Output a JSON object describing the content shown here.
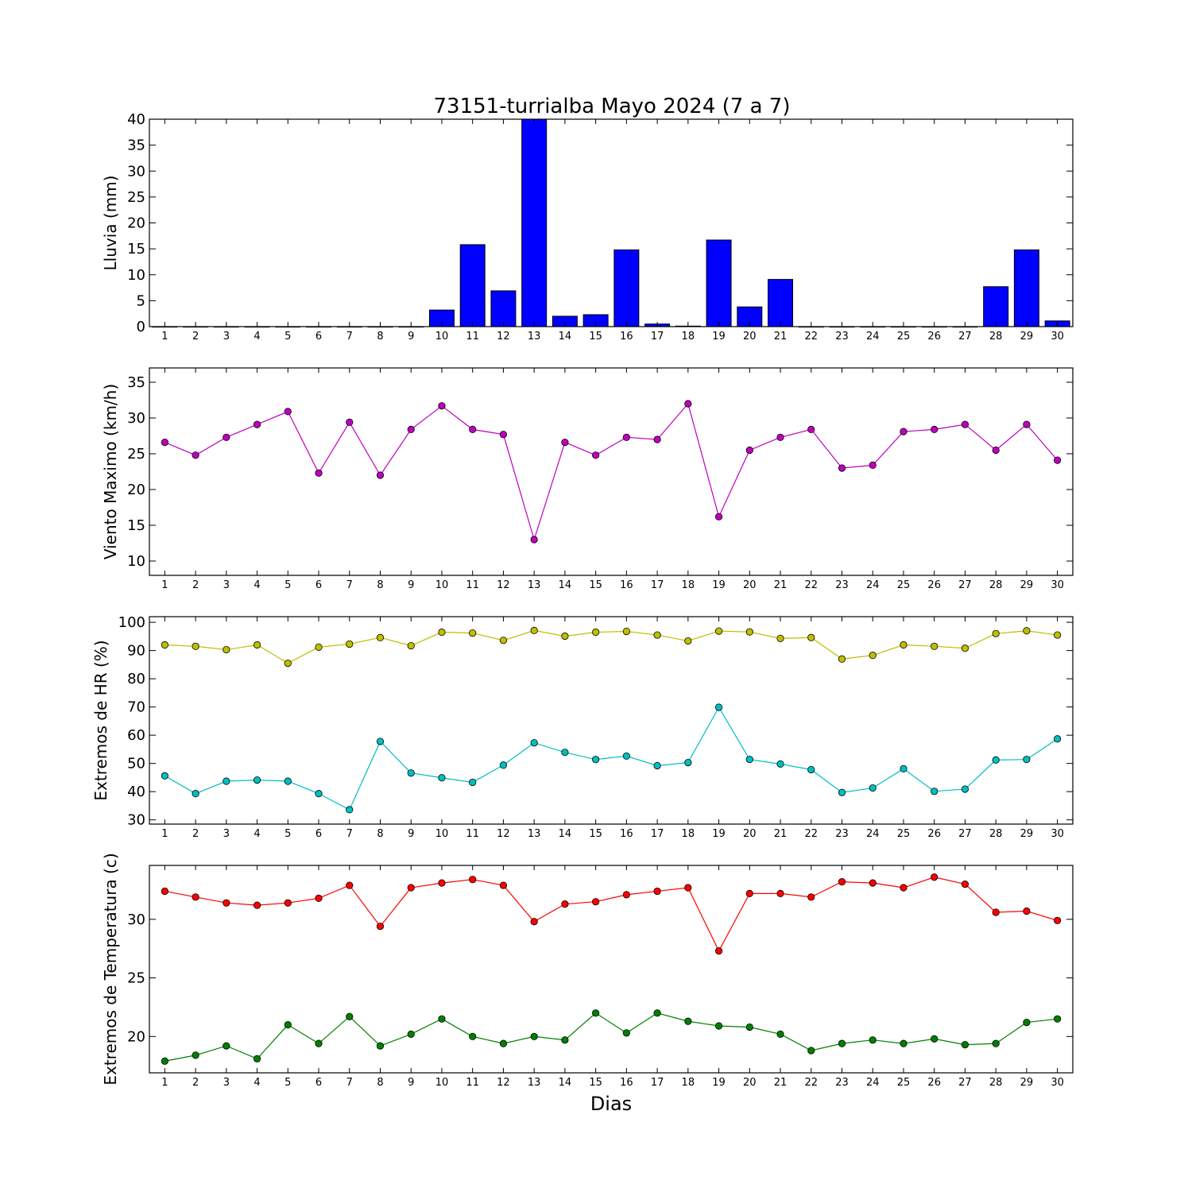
{
  "chart_data": [
    {
      "type": "bar",
      "title": "73151-turrialba Mayo 2024  (7 a 7)",
      "ylabel": "Lluvia (mm)",
      "ylim": [
        0,
        40
      ],
      "yticks": [
        0,
        5,
        10,
        15,
        20,
        25,
        30,
        35,
        40
      ],
      "color": "#0000ff",
      "x": [
        1,
        2,
        3,
        4,
        5,
        6,
        7,
        8,
        9,
        10,
        11,
        12,
        13,
        14,
        15,
        16,
        17,
        18,
        19,
        20,
        21,
        22,
        23,
        24,
        25,
        26,
        27,
        28,
        29,
        30
      ],
      "values": [
        0,
        0,
        0,
        0,
        0,
        0,
        0,
        0,
        0,
        3.2,
        15.8,
        6.9,
        40,
        2,
        2.3,
        14.8,
        0.5,
        0.1,
        16.7,
        3.8,
        9.1,
        0,
        0,
        0,
        0,
        0,
        0,
        7.7,
        14.8,
        1.1
      ]
    },
    {
      "type": "line",
      "ylabel": "Viento Maximo (km/h)",
      "ylim": [
        8,
        37
      ],
      "yticks": [
        10,
        15,
        20,
        25,
        30,
        35
      ],
      "x": [
        1,
        2,
        3,
        4,
        5,
        6,
        7,
        8,
        9,
        10,
        11,
        12,
        13,
        14,
        15,
        16,
        17,
        18,
        19,
        20,
        21,
        22,
        23,
        24,
        25,
        26,
        27,
        28,
        29,
        30
      ],
      "series": [
        {
          "color": "#bf00bf",
          "values": [
            26.6,
            24.8,
            27.3,
            29.1,
            30.9,
            22.3,
            29.4,
            22,
            28.4,
            31.7,
            28.4,
            27.7,
            13,
            26.6,
            24.8,
            27.3,
            27,
            32,
            16.2,
            25.5,
            27.3,
            28.4,
            23,
            23.4,
            28.1,
            28.4,
            29.1,
            25.5,
            29.1,
            24.1
          ]
        }
      ]
    },
    {
      "type": "line",
      "ylabel": "Extremos de HR (%)",
      "ylim": [
        28.5,
        102
      ],
      "yticks": [
        30,
        40,
        50,
        60,
        70,
        80,
        90,
        100
      ],
      "x": [
        1,
        2,
        3,
        4,
        5,
        6,
        7,
        8,
        9,
        10,
        11,
        12,
        13,
        14,
        15,
        16,
        17,
        18,
        19,
        20,
        21,
        22,
        23,
        24,
        25,
        26,
        27,
        28,
        29,
        30
      ],
      "series": [
        {
          "color": "#bfbf00",
          "values": [
            92,
            91.5,
            90.3,
            92,
            85.5,
            91.2,
            92.3,
            94.6,
            91.7,
            96.5,
            96.2,
            93.6,
            97.1,
            95.1,
            96.5,
            96.8,
            95.5,
            93.4,
            96.9,
            96.6,
            94.3,
            94.6,
            87,
            88.3,
            92,
            91.5,
            90.8,
            96,
            97,
            95.5
          ]
        },
        {
          "color": "#00bfbf",
          "values": [
            45.6,
            39.3,
            43.7,
            44.1,
            43.7,
            39.3,
            33.6,
            57.8,
            46.6,
            44.9,
            43.3,
            49.4,
            57.3,
            53.9,
            51.4,
            52.6,
            49.2,
            50.3,
            69.9,
            51.4,
            49.8,
            47.8,
            39.7,
            41.3,
            48.1,
            40.1,
            40.9,
            51.2,
            51.4,
            58.7
          ]
        }
      ]
    },
    {
      "type": "line",
      "ylabel": "Extremos de Temperatura (c)",
      "xlabel": "Dias",
      "ylim": [
        16.9,
        34.6
      ],
      "yticks": [
        20,
        25,
        30
      ],
      "x": [
        1,
        2,
        3,
        4,
        5,
        6,
        7,
        8,
        9,
        10,
        11,
        12,
        13,
        14,
        15,
        16,
        17,
        18,
        19,
        20,
        21,
        22,
        23,
        24,
        25,
        26,
        27,
        28,
        29,
        30
      ],
      "series": [
        {
          "color": "#ff0000",
          "values": [
            32.4,
            31.9,
            31.4,
            31.2,
            31.4,
            31.8,
            32.9,
            29.4,
            32.7,
            33.1,
            33.4,
            32.9,
            29.8,
            31.3,
            31.5,
            32.1,
            32.4,
            32.7,
            27.3,
            32.2,
            32.2,
            31.9,
            33.2,
            33.1,
            32.7,
            33.6,
            33,
            30.6,
            30.7,
            29.9
          ]
        },
        {
          "color": "#008000",
          "values": [
            17.9,
            18.4,
            19.2,
            18.1,
            21,
            19.4,
            21.7,
            19.2,
            20.2,
            21.5,
            20,
            19.4,
            20,
            19.7,
            22,
            20.3,
            22,
            21.3,
            20.9,
            20.8,
            20.2,
            18.8,
            19.4,
            19.7,
            19.4,
            19.8,
            19.3,
            19.4,
            21.2,
            21.5
          ]
        }
      ]
    }
  ]
}
